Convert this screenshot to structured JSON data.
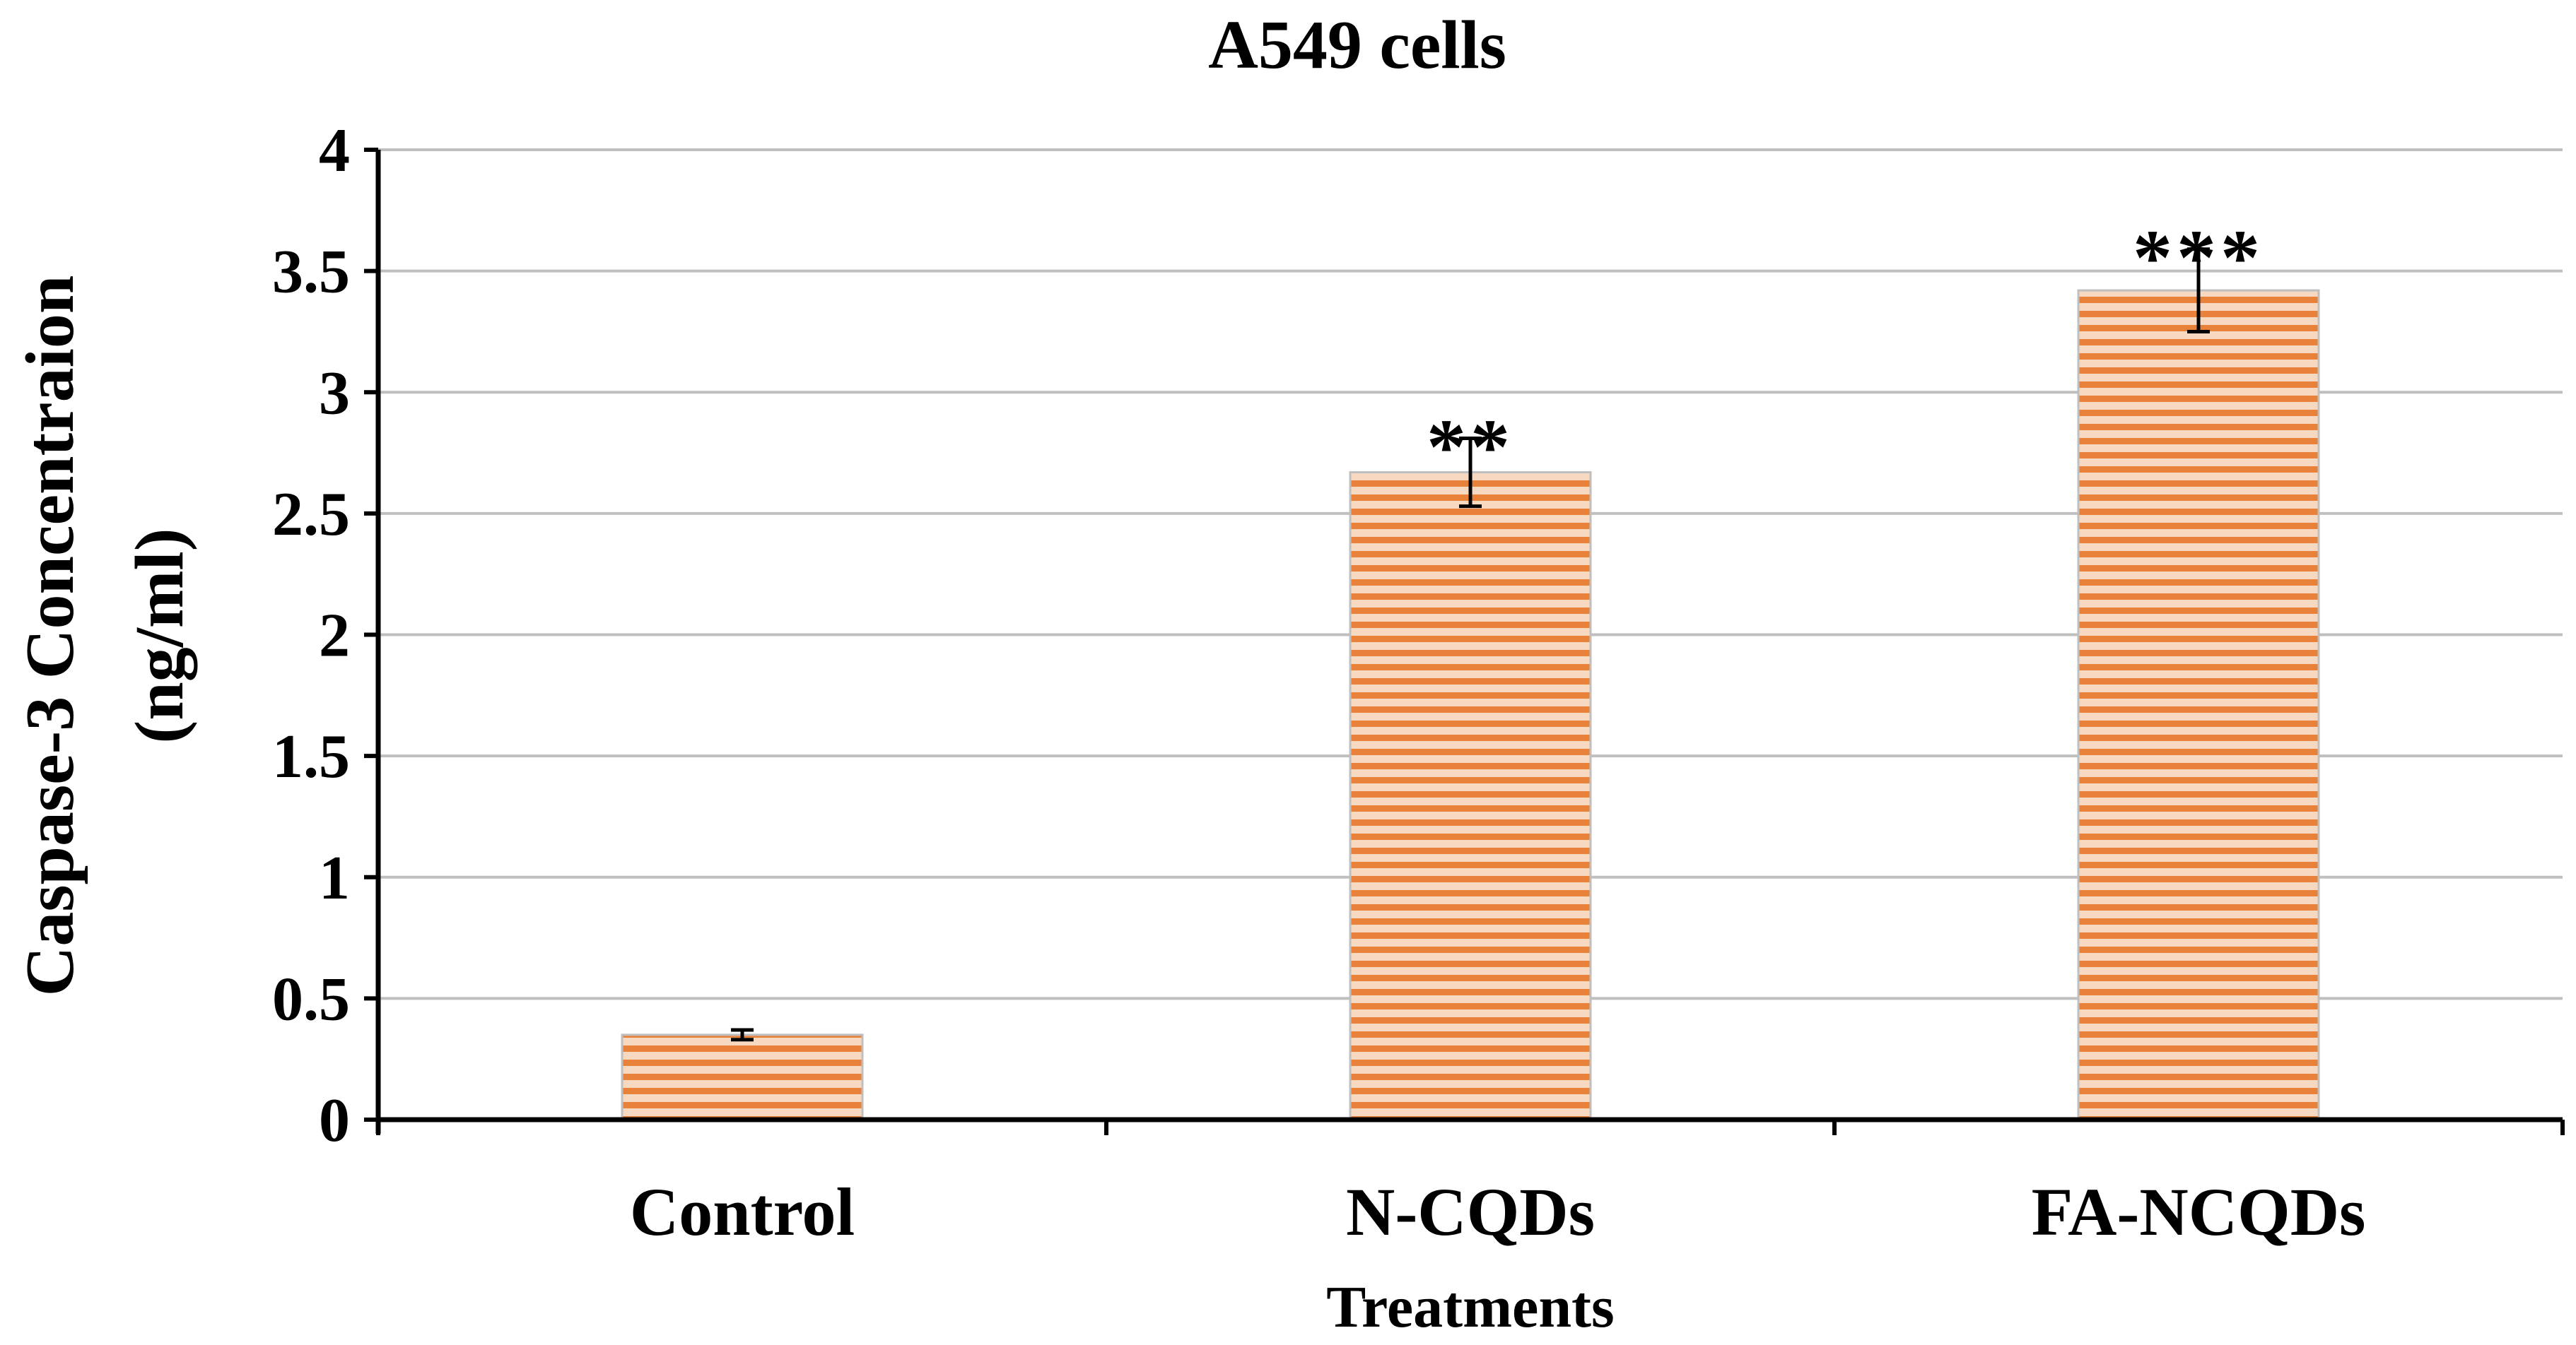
{
  "chart_data": {
    "type": "bar",
    "title": "A549  cells",
    "xlabel": "Treatments",
    "ylabel_line1": "Caspase-3 Concentraion",
    "ylabel_line2": "(ng/ml)",
    "categories": [
      "Control",
      "N-CQDs",
      "FA-NCQDs"
    ],
    "values": [
      0.35,
      2.67,
      3.42
    ],
    "error": [
      0.02,
      0.14,
      0.17
    ],
    "significance": [
      "",
      "**",
      "***"
    ],
    "ylim": [
      0,
      4
    ],
    "yticks": [
      0,
      0.5,
      1,
      1.5,
      2,
      2.5,
      3,
      3.5,
      4
    ],
    "ytick_labels": [
      "0",
      "0.5",
      "1",
      "1.5",
      "2",
      "2.5",
      "3",
      "3.5",
      "4"
    ],
    "grid": true,
    "legend": "none"
  },
  "colors": {
    "bar_stripe": "#e8813a",
    "bar_light": "#f7d9c2",
    "bar_edge": "#bfbfbf",
    "grid": "#bfbfbf",
    "axis": "#000000",
    "text": "#000000"
  }
}
